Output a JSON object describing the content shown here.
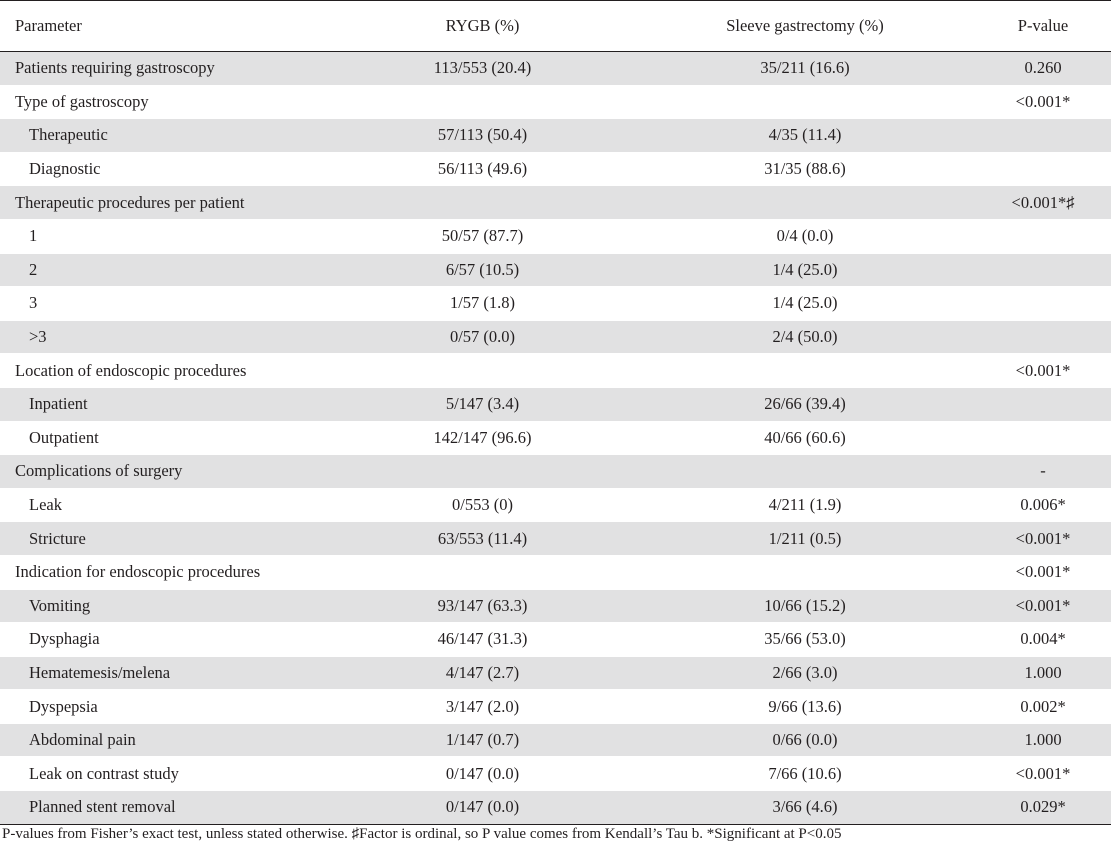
{
  "table": {
    "headers": {
      "parameter": "Parameter",
      "rygb": "RYGB (%)",
      "sleeve": "Sleeve gastrectomy (%)",
      "pvalue": "P-value"
    },
    "rows": [
      {
        "parameter": "Patients requiring gastroscopy",
        "rygb": "113/553 (20.4)",
        "sleeve": "35/211 (16.6)",
        "pvalue": "0.260",
        "indent": false
      },
      {
        "parameter": "Type of gastroscopy",
        "rygb": "",
        "sleeve": "",
        "pvalue": "<0.001*",
        "indent": false
      },
      {
        "parameter": "Therapeutic",
        "rygb": "57/113 (50.4)",
        "sleeve": "4/35 (11.4)",
        "pvalue": "",
        "indent": true
      },
      {
        "parameter": "Diagnostic",
        "rygb": "56/113 (49.6)",
        "sleeve": "31/35 (88.6)",
        "pvalue": "",
        "indent": true
      },
      {
        "parameter": "Therapeutic procedures per patient",
        "rygb": "",
        "sleeve": "",
        "pvalue": "<0.001*♯",
        "indent": false
      },
      {
        "parameter": "1",
        "rygb": "50/57 (87.7)",
        "sleeve": "0/4 (0.0)",
        "pvalue": "",
        "indent": true
      },
      {
        "parameter": "2",
        "rygb": "6/57 (10.5)",
        "sleeve": "1/4 (25.0)",
        "pvalue": "",
        "indent": true
      },
      {
        "parameter": "3",
        "rygb": "1/57 (1.8)",
        "sleeve": "1/4 (25.0)",
        "pvalue": "",
        "indent": true
      },
      {
        "parameter": ">3",
        "rygb": "0/57 (0.0)",
        "sleeve": "2/4 (50.0)",
        "pvalue": "",
        "indent": true
      },
      {
        "parameter": "Location of endoscopic procedures",
        "rygb": "",
        "sleeve": "",
        "pvalue": "<0.001*",
        "indent": false
      },
      {
        "parameter": "Inpatient",
        "rygb": "5/147 (3.4)",
        "sleeve": "26/66 (39.4)",
        "pvalue": "",
        "indent": true
      },
      {
        "parameter": "Outpatient",
        "rygb": "142/147 (96.6)",
        "sleeve": "40/66 (60.6)",
        "pvalue": "",
        "indent": true
      },
      {
        "parameter": "Complications of surgery",
        "rygb": "",
        "sleeve": "",
        "pvalue": "-",
        "indent": false
      },
      {
        "parameter": "Leak",
        "rygb": "0/553 (0)",
        "sleeve": "4/211 (1.9)",
        "pvalue": "0.006*",
        "indent": true
      },
      {
        "parameter": "Stricture",
        "rygb": "63/553 (11.4)",
        "sleeve": "1/211 (0.5)",
        "pvalue": "<0.001*",
        "indent": true
      },
      {
        "parameter": "Indication for endoscopic procedures",
        "rygb": "",
        "sleeve": "",
        "pvalue": "<0.001*",
        "indent": false
      },
      {
        "parameter": "Vomiting",
        "rygb": "93/147 (63.3)",
        "sleeve": "10/66 (15.2)",
        "pvalue": "<0.001*",
        "indent": true
      },
      {
        "parameter": "Dysphagia",
        "rygb": "46/147 (31.3)",
        "sleeve": "35/66 (53.0)",
        "pvalue": "0.004*",
        "indent": true
      },
      {
        "parameter": "Hematemesis/melena",
        "rygb": "4/147 (2.7)",
        "sleeve": "2/66 (3.0)",
        "pvalue": "1.000",
        "indent": true
      },
      {
        "parameter": "Dyspepsia",
        "rygb": "3/147 (2.0)",
        "sleeve": "9/66 (13.6)",
        "pvalue": "0.002*",
        "indent": true
      },
      {
        "parameter": "Abdominal pain",
        "rygb": "1/147 (0.7)",
        "sleeve": "0/66 (0.0)",
        "pvalue": "1.000",
        "indent": true
      },
      {
        "parameter": "Leak on contrast study",
        "rygb": "0/147 (0.0)",
        "sleeve": "7/66 (10.6)",
        "pvalue": "<0.001*",
        "indent": true
      },
      {
        "parameter": "Planned stent removal",
        "rygb": "0/147 (0.0)",
        "sleeve": "3/66 (4.6)",
        "pvalue": "0.029*",
        "indent": true
      }
    ]
  },
  "footnote": "P-values from Fisher’s exact test, unless stated otherwise. ♯Factor is ordinal, so P value comes from Kendall’s Tau b. *Significant at P<0.05",
  "colors": {
    "shade": "#e1e1e2",
    "text": "#231f20",
    "rule": "#231f20"
  }
}
